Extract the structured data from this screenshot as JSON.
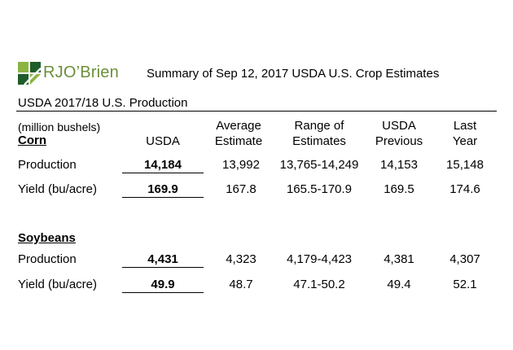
{
  "logo": {
    "text": "RJO’Brien"
  },
  "title": "Summary of Sep 12, 2017 USDA U.S. Crop Estimates",
  "section": "USDA 2017/18 U.S. Production",
  "units": "(million bushels)",
  "headers": {
    "usda": "USDA",
    "avg": "Average\nEstimate",
    "range": "Range of\nEstimates",
    "prev": "USDA\nPrevious",
    "last": "Last\nYear"
  },
  "crops": [
    {
      "name": "Corn",
      "rows": [
        {
          "label": "Production",
          "usda": "14,184",
          "avg": "13,992",
          "range": "13,765-14,249",
          "prev": "14,153",
          "last": "15,148"
        },
        {
          "label": "Yield (bu/acre)",
          "usda": "169.9",
          "avg": "167.8",
          "range": "165.5-170.9",
          "prev": "169.5",
          "last": "174.6"
        }
      ]
    },
    {
      "name": "Soybeans",
      "rows": [
        {
          "label": "Production",
          "usda": "4,431",
          "avg": "4,323",
          "range": "4,179-4,423",
          "prev": "4,381",
          "last": "4,307"
        },
        {
          "label": "Yield (bu/acre)",
          "usda": "49.9",
          "avg": "48.7",
          "range": "47.1-50.2",
          "prev": "49.4",
          "last": "52.1"
        }
      ]
    }
  ],
  "colors": {
    "brand_dark": "#1f5c2b",
    "brand_light": "#8cb443",
    "brand_text": "#6b8f3a"
  }
}
